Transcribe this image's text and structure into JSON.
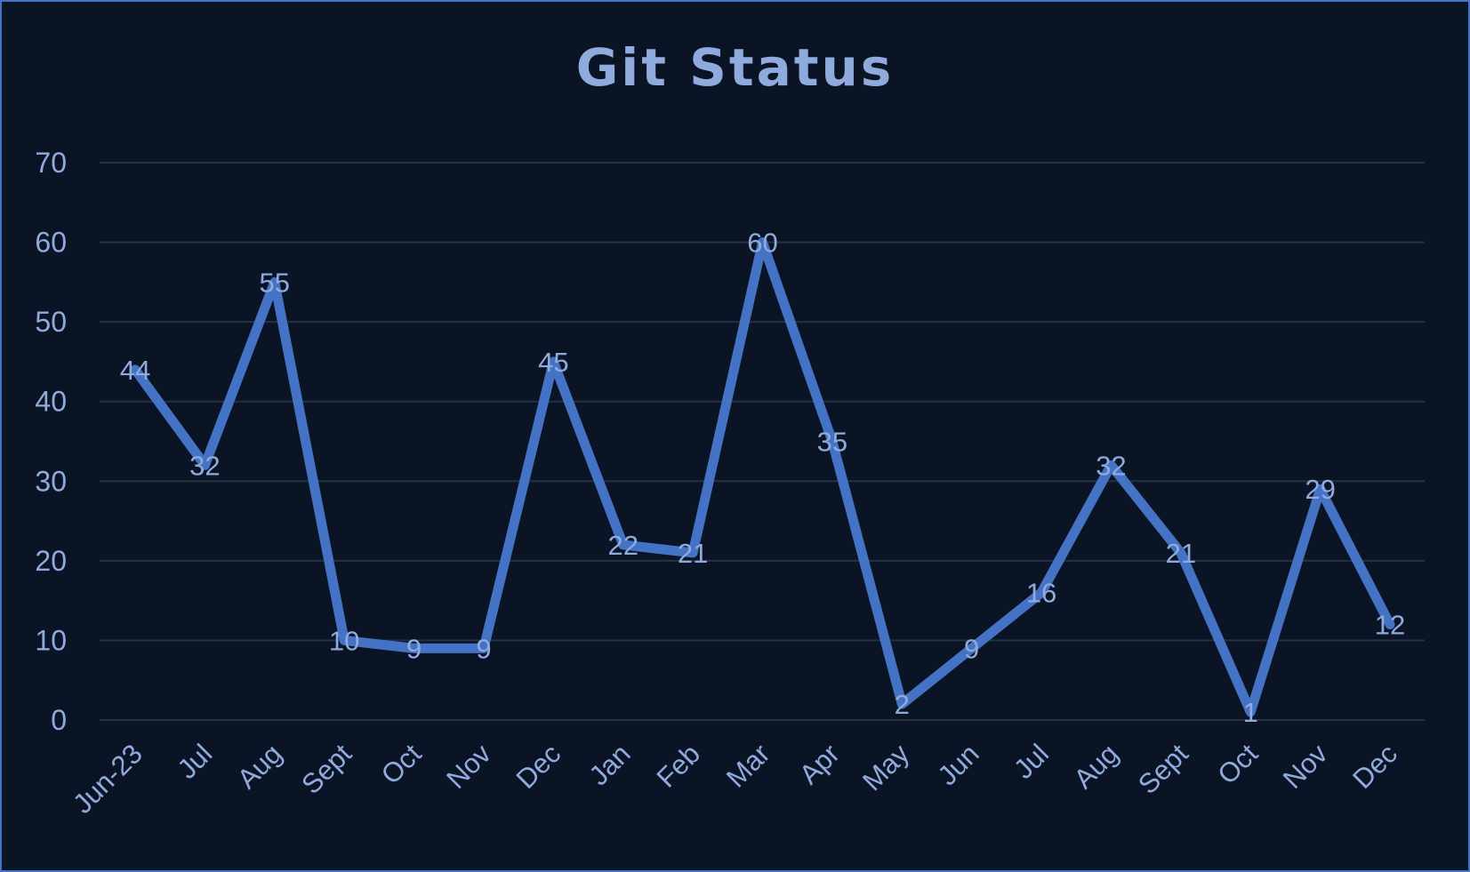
{
  "chart_data": {
    "type": "line",
    "title": "Git Status",
    "xlabel": "",
    "ylabel": "",
    "categories": [
      "Jun-23",
      "Jul",
      "Aug",
      "Sept",
      "Oct",
      "Nov",
      "Dec",
      "Jan",
      "Feb",
      "Mar",
      "Apr",
      "May",
      "Jun",
      "Jul",
      "Aug",
      "Sept",
      "Oct",
      "Nov",
      "Dec"
    ],
    "series": [
      {
        "values": [
          44,
          32,
          55,
          10,
          9,
          9,
          45,
          22,
          21,
          60,
          35,
          2,
          9,
          16,
          32,
          21,
          1,
          29,
          12
        ]
      }
    ],
    "ylim": [
      0,
      70
    ],
    "yticks": [
      0,
      10,
      20,
      30,
      40,
      50,
      60,
      70
    ],
    "grid": true,
    "legend": "none",
    "data_labels": true,
    "colors": {
      "background": "#0b1424",
      "border": "#4472c4",
      "line": "#4472c4",
      "text": "#8faadc",
      "grid": "#243044"
    }
  }
}
